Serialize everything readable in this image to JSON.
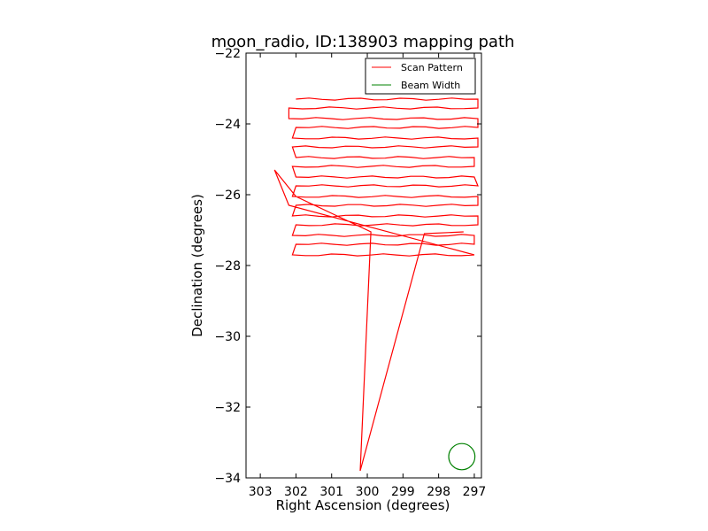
{
  "chart_data": {
    "type": "line",
    "title": "moon_radio, ID:138903 mapping path",
    "xlabel": "Right Ascension (degrees)",
    "ylabel": "Declination (degrees)",
    "xlim": [
      303.4,
      296.8
    ],
    "ylim": [
      -34,
      -22
    ],
    "x_ticks": [
      303,
      302,
      301,
      300,
      299,
      298,
      297
    ],
    "y_ticks": [
      -22,
      -24,
      -26,
      -28,
      -30,
      -32,
      -34
    ],
    "x_tick_labels": [
      "303",
      "302",
      "301",
      "300",
      "299",
      "298",
      "297"
    ],
    "y_tick_labels": [
      "−22",
      "−24",
      "−26",
      "−28",
      "−30",
      "−32",
      "−34"
    ],
    "grid": false,
    "legend_position": "top-right",
    "series": [
      {
        "name": "Scan Pattern",
        "color": "#ff0000",
        "scan_rows": [
          {
            "dec": -23.3,
            "ra_start": 302.0,
            "ra_end": 296.9
          },
          {
            "dec": -23.55,
            "ra_start": 302.2,
            "ra_end": 296.9
          },
          {
            "dec": -23.85,
            "ra_start": 302.2,
            "ra_end": 296.9
          },
          {
            "dec": -24.1,
            "ra_start": 302.0,
            "ra_end": 296.9
          },
          {
            "dec": -24.4,
            "ra_start": 302.1,
            "ra_end": 296.9
          },
          {
            "dec": -24.65,
            "ra_start": 302.1,
            "ra_end": 296.9
          },
          {
            "dec": -24.95,
            "ra_start": 302.0,
            "ra_end": 297.0
          },
          {
            "dec": -25.2,
            "ra_start": 302.1,
            "ra_end": 297.0
          },
          {
            "dec": -25.5,
            "ra_start": 302.0,
            "ra_end": 297.0
          },
          {
            "dec": -25.75,
            "ra_start": 302.0,
            "ra_end": 296.9
          },
          {
            "dec": -26.05,
            "ra_start": 302.1,
            "ra_end": 296.9
          },
          {
            "dec": -26.3,
            "ra_start": 302.0,
            "ra_end": 296.9
          },
          {
            "dec": -26.6,
            "ra_start": 302.1,
            "ra_end": 296.9
          },
          {
            "dec": -26.85,
            "ra_start": 302.0,
            "ra_end": 296.9
          },
          {
            "dec": -27.15,
            "ra_start": 302.1,
            "ra_end": 297.0
          },
          {
            "dec": -27.4,
            "ra_start": 302.0,
            "ra_end": 297.0
          },
          {
            "dec": -27.7,
            "ra_start": 302.1,
            "ra_end": 297.0
          }
        ],
        "slew_path": [
          [
            302.2,
            -26.3
          ],
          [
            302.6,
            -25.3
          ],
          [
            302.0,
            -26.05
          ],
          [
            299.9,
            -27.05
          ],
          [
            300.2,
            -33.8
          ],
          [
            298.4,
            -27.1
          ],
          [
            297.3,
            -27.05
          ]
        ]
      },
      {
        "name": "Beam Width",
        "color": "#008000",
        "circle": {
          "ra": 297.35,
          "dec": -33.4,
          "radius_deg": 0.37
        }
      }
    ]
  }
}
